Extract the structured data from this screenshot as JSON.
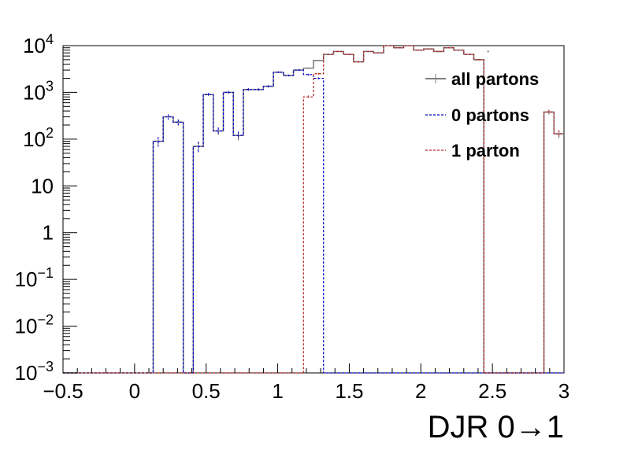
{
  "chart_data": {
    "type": "histogram",
    "xlabel": "DJR 0→1",
    "ylabel": "",
    "xlim": [
      -0.5,
      3.0
    ],
    "ylim": [
      0.001,
      10000
    ],
    "log_y": true,
    "grid": false,
    "legend_position": "top-right",
    "x_ticks": [
      "−0.5",
      "0",
      "0.5",
      "1",
      "1.5",
      "2",
      "2.5",
      "3"
    ],
    "y_ticks": [
      {
        "base": "10",
        "exp": "−3"
      },
      {
        "base": "10",
        "exp": "−2"
      },
      {
        "base": "10",
        "exp": "−1"
      },
      {
        "base": "1",
        "exp": ""
      },
      {
        "base": "10",
        "exp": ""
      },
      {
        "base": "10",
        "exp": "2"
      },
      {
        "base": "10",
        "exp": "3"
      },
      {
        "base": "10",
        "exp": "4"
      }
    ],
    "bin_edges": [
      -0.5,
      -0.43,
      -0.36,
      -0.29,
      -0.22,
      -0.15,
      -0.08,
      -0.01,
      0.06,
      0.13,
      0.2,
      0.27,
      0.34,
      0.41,
      0.48,
      0.55,
      0.62,
      0.69,
      0.76,
      0.83,
      0.9,
      0.97,
      1.04,
      1.11,
      1.18,
      1.25,
      1.32,
      1.39,
      1.46,
      1.53,
      1.6,
      1.67,
      1.74,
      1.81,
      1.88,
      1.95,
      2.02,
      2.09,
      2.16,
      2.23,
      2.3,
      2.37,
      2.44,
      2.51,
      2.58,
      2.65,
      2.72,
      2.79,
      2.86,
      2.93,
      3.0
    ],
    "series": [
      {
        "name": "all partons",
        "color": "#7f7f7f",
        "style": "solid",
        "values": [
          0,
          0,
          0,
          0,
          0,
          0,
          0,
          0,
          0,
          90,
          300,
          230,
          0,
          70,
          900,
          150,
          1000,
          120,
          1150,
          1150,
          1350,
          2700,
          2300,
          3000,
          3300,
          4800,
          6500,
          7500,
          6500,
          4500,
          7500,
          7000,
          12000,
          9000,
          10000,
          8000,
          8500,
          7500,
          9000,
          8000,
          6500,
          5000,
          0,
          0,
          0,
          0,
          0,
          0,
          380,
          130
        ]
      },
      {
        "name": "0 partons",
        "color": "#0000cc",
        "style": "dotted",
        "values": [
          0,
          0,
          0,
          0,
          0,
          0,
          0,
          0,
          0,
          90,
          300,
          230,
          0,
          70,
          900,
          150,
          1000,
          120,
          1150,
          1150,
          1350,
          2700,
          2300,
          3000,
          2400,
          2000,
          0,
          0,
          0,
          0,
          0,
          0,
          0,
          0,
          0,
          0,
          0,
          0,
          0,
          0,
          0,
          0,
          0,
          0,
          0,
          0,
          0,
          0,
          0,
          0
        ]
      },
      {
        "name": "1 parton",
        "color": "#b22222",
        "style": "dotted",
        "values": [
          0,
          0,
          0,
          0,
          0,
          0,
          0,
          0,
          0,
          0,
          0,
          0,
          0,
          0,
          0,
          0,
          0,
          0,
          0,
          0,
          0,
          0,
          0,
          0,
          800,
          2500,
          6500,
          7500,
          6500,
          4500,
          7500,
          7000,
          12000,
          9000,
          10000,
          8000,
          8500,
          7500,
          9000,
          8000,
          6500,
          5000,
          0,
          0,
          0,
          0,
          0,
          0,
          380,
          130
        ]
      }
    ],
    "isolated_markers": [
      {
        "x": 2.47,
        "y": 7500
      }
    ]
  }
}
